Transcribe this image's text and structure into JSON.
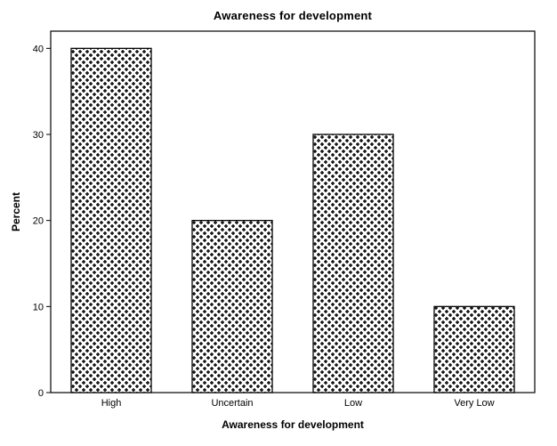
{
  "chart_data": {
    "type": "bar",
    "title": "Awareness for development",
    "xlabel": "Awareness for development",
    "ylabel": "Percent",
    "categories": [
      "High",
      "Uncertain",
      "Low",
      "Very Low"
    ],
    "values": [
      40,
      20,
      30,
      10
    ],
    "yticks": [
      0,
      10,
      20,
      30,
      40
    ],
    "ylim": [
      0,
      42
    ],
    "legend": "none",
    "grid": "off",
    "bar_fill_style": "crosshatch-plus-pattern",
    "colors": {
      "background": "#ffffff",
      "bar_border": "#000000",
      "pattern": "#000000",
      "frame": "#000000",
      "text": "#000000"
    }
  }
}
